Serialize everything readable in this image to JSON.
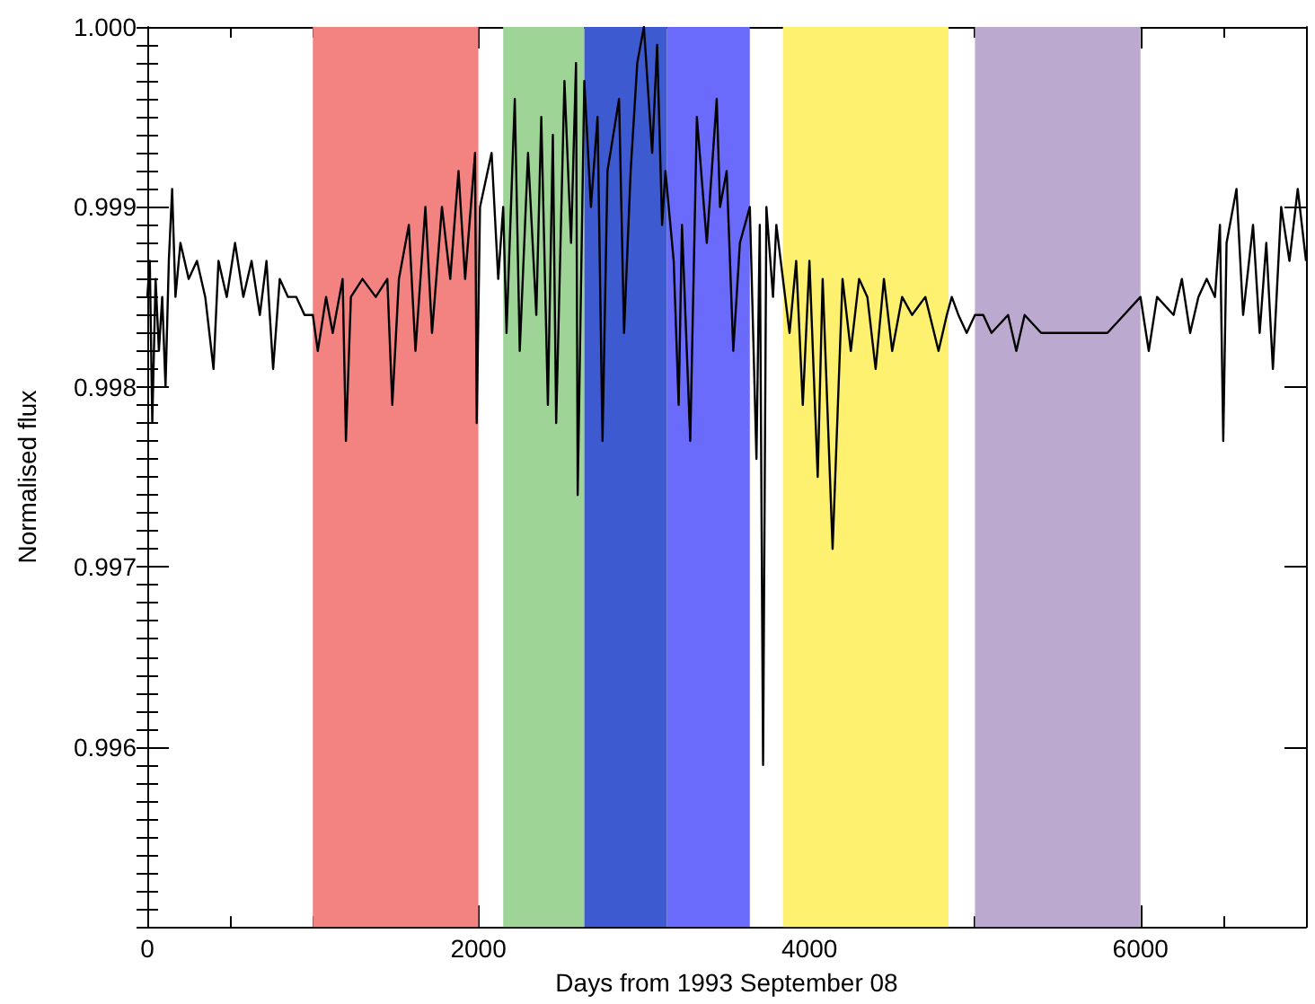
{
  "chart_data": {
    "type": "line",
    "xlabel": "Days from 1993 September 08",
    "ylabel": "Normalised flux",
    "xlim": [
      0,
      7000
    ],
    "xticks": [
      0,
      2000,
      4000,
      6000
    ],
    "ylim": [
      0.995,
      1.0
    ],
    "yticks": [
      0.996,
      0.997,
      0.998,
      0.999,
      {
        "value": 1.0,
        "label": "1.000"
      }
    ],
    "marker": "none",
    "line_style": "solid",
    "bands": [
      {
        "axis": "x",
        "from": 1000,
        "to": 2000,
        "color": "#f28380"
      },
      {
        "axis": "x",
        "from": 2150,
        "to": 2640,
        "color": "#9ed597"
      },
      {
        "axis": "x",
        "from": 2640,
        "to": 3140,
        "color": "#3e5ad0"
      },
      {
        "axis": "x",
        "from": 3140,
        "to": 3640,
        "color": "#6a6bfa"
      },
      {
        "axis": "x",
        "from": 3840,
        "to": 4840,
        "color": "#fff170"
      },
      {
        "axis": "x",
        "from": 5000,
        "to": 6000,
        "color": "#bba9cf"
      }
    ],
    "series": [
      {
        "color": "#000000",
        "x": [
          0,
          15,
          30,
          50,
          70,
          90,
          110,
          130,
          150,
          170,
          200,
          250,
          300,
          350,
          400,
          430,
          480,
          530,
          580,
          630,
          680,
          720,
          760,
          800,
          850,
          900,
          950,
          1000,
          1030,
          1080,
          1120,
          1180,
          1200,
          1230,
          1300,
          1380,
          1450,
          1480,
          1520,
          1580,
          1620,
          1680,
          1720,
          1780,
          1830,
          1880,
          1920,
          1980,
          1990,
          2010,
          2080,
          2120,
          2150,
          2170,
          2220,
          2250,
          2300,
          2350,
          2380,
          2420,
          2450,
          2470,
          2520,
          2560,
          2590,
          2600,
          2640,
          2680,
          2720,
          2750,
          2780,
          2850,
          2880,
          2920,
          2960,
          3000,
          3050,
          3080,
          3110,
          3130,
          3180,
          3210,
          3230,
          3280,
          3320,
          3380,
          3440,
          3460,
          3500,
          3540,
          3580,
          3640,
          3680,
          3700,
          3720,
          3740,
          3780,
          3800,
          3840,
          3880,
          3920,
          3960,
          4000,
          4050,
          4080,
          4140,
          4200,
          4250,
          4300,
          4350,
          4400,
          4450,
          4500,
          4560,
          4620,
          4700,
          4780,
          4830,
          4860,
          4900,
          4950,
          5000,
          5050,
          5100,
          5200,
          5250,
          5300,
          5400,
          5500,
          5600,
          5700,
          5800,
          5900,
          6000,
          6050,
          6100,
          6200,
          6250,
          6300,
          6350,
          6400,
          6450,
          6480,
          6500,
          6520,
          6580,
          6620,
          6680,
          6720,
          6760,
          6800,
          6850,
          6900,
          6950,
          7000
        ],
        "values": [
          0.9985,
          0.9987,
          0.9978,
          0.9986,
          0.9982,
          0.9985,
          0.998,
          0.9987,
          0.9991,
          0.9985,
          0.9988,
          0.9986,
          0.9987,
          0.9985,
          0.9981,
          0.9987,
          0.9985,
          0.9988,
          0.9985,
          0.9987,
          0.9984,
          0.9987,
          0.9981,
          0.9986,
          0.9985,
          0.9985,
          0.9984,
          0.9984,
          0.9982,
          0.9985,
          0.9983,
          0.9986,
          0.9977,
          0.9985,
          0.9986,
          0.9985,
          0.9986,
          0.9979,
          0.9986,
          0.9989,
          0.9982,
          0.999,
          0.9983,
          0.999,
          0.9986,
          0.9992,
          0.9986,
          0.9993,
          0.9978,
          0.999,
          0.9993,
          0.9986,
          0.999,
          0.9983,
          0.9996,
          0.9982,
          0.9993,
          0.9984,
          0.9995,
          0.9979,
          0.9994,
          0.9978,
          0.9997,
          0.9988,
          0.9998,
          0.9974,
          0.9997,
          0.999,
          0.9995,
          0.9977,
          0.9992,
          0.9996,
          0.9983,
          0.9992,
          0.9998,
          1.0,
          0.9993,
          0.9999,
          0.9989,
          0.9992,
          0.9987,
          0.9979,
          0.9989,
          0.9977,
          0.9995,
          0.9988,
          0.9996,
          0.999,
          0.9992,
          0.9982,
          0.9988,
          0.999,
          0.9976,
          0.9989,
          0.9959,
          0.999,
          0.9985,
          0.9989,
          0.9986,
          0.9983,
          0.9987,
          0.9979,
          0.9987,
          0.9975,
          0.9986,
          0.9971,
          0.9986,
          0.9982,
          0.9986,
          0.9985,
          0.9981,
          0.9986,
          0.9982,
          0.9985,
          0.9984,
          0.9985,
          0.9982,
          0.9984,
          0.9985,
          0.9984,
          0.9983,
          0.9984,
          0.9984,
          0.9983,
          0.9984,
          0.9982,
          0.9984,
          0.9983,
          0.9983,
          0.9983,
          0.9983,
          0.9983,
          0.9984,
          0.9985,
          0.9982,
          0.9985,
          0.9984,
          0.9986,
          0.9983,
          0.9985,
          0.9986,
          0.9985,
          0.9989,
          0.9977,
          0.9988,
          0.9991,
          0.9984,
          0.9989,
          0.9983,
          0.9988,
          0.9981,
          0.999,
          0.9987,
          0.9991,
          0.9987
        ]
      }
    ]
  }
}
